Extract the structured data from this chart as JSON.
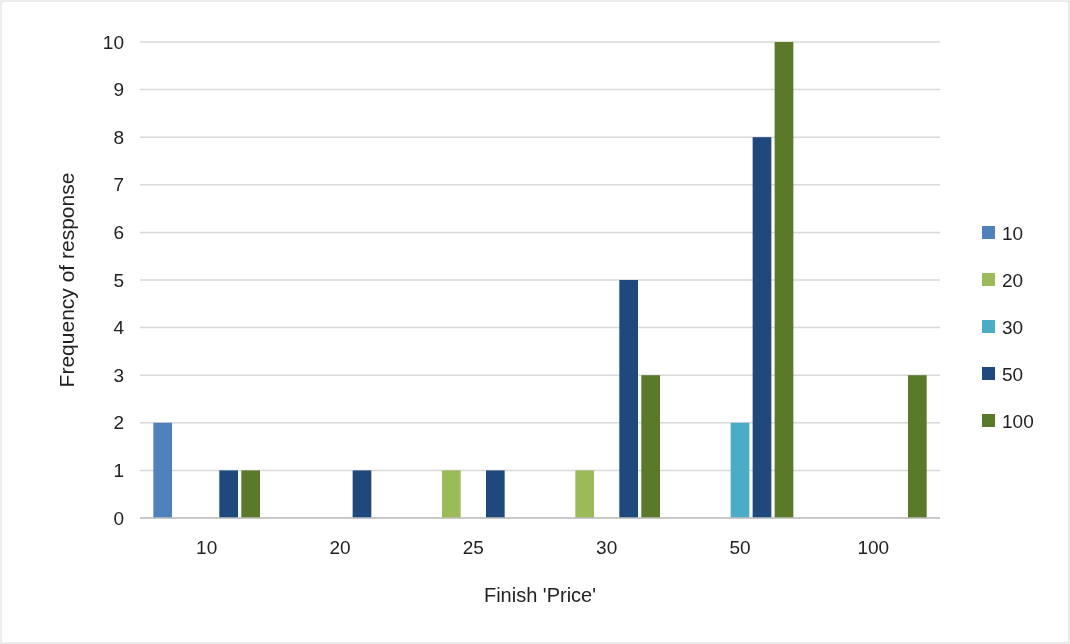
{
  "chart_data": {
    "type": "bar",
    "xlabel": "Finish 'Price'",
    "ylabel": "Frequency of response",
    "categories": [
      "10",
      "20",
      "25",
      "30",
      "50",
      "100"
    ],
    "series": [
      {
        "name": "10",
        "color": "#4f81bd",
        "values": [
          2,
          0,
          0,
          0,
          0,
          0
        ]
      },
      {
        "name": "20",
        "color": "#9bbb59",
        "values": [
          0,
          0,
          1,
          1,
          0,
          0
        ]
      },
      {
        "name": "30",
        "color": "#4bacc6",
        "values": [
          0,
          0,
          0,
          0,
          2,
          0
        ]
      },
      {
        "name": "50",
        "color": "#1f497d",
        "values": [
          1,
          1,
          1,
          5,
          8,
          0
        ]
      },
      {
        "name": "100",
        "color": "#5a7a2a",
        "values": [
          1,
          0,
          0,
          3,
          10,
          3
        ]
      }
    ],
    "ylim": [
      0,
      10
    ],
    "yticks": [
      0,
      1,
      2,
      3,
      4,
      5,
      6,
      7,
      8,
      9,
      10
    ],
    "grid": "y",
    "legend": "right"
  }
}
